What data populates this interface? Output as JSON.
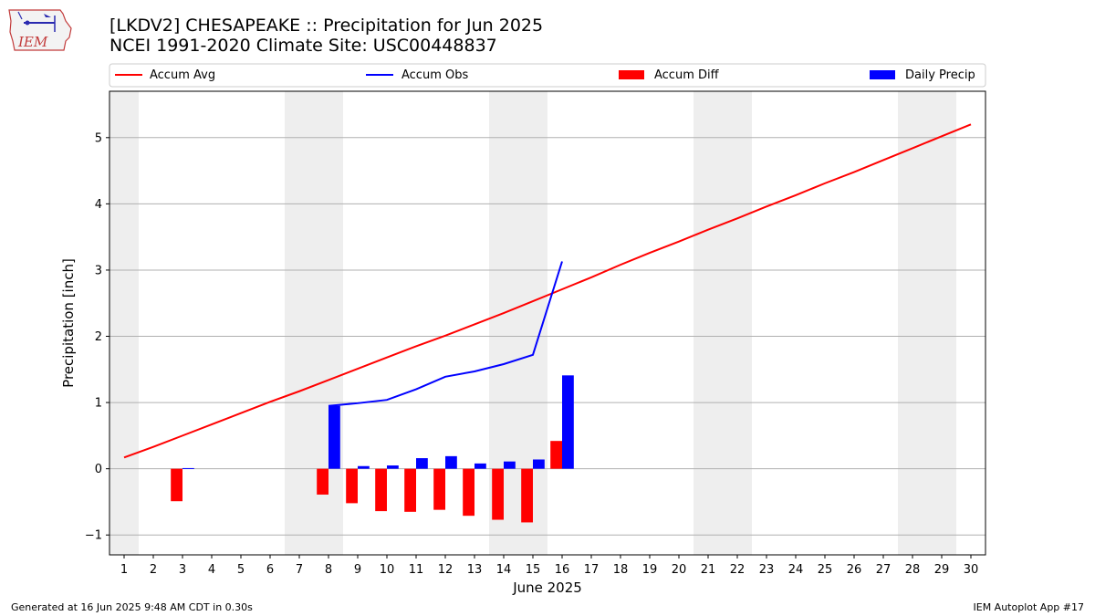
{
  "header": {
    "title_line1": "[LKDV2] CHESAPEAKE :: Precipitation for Jun 2025",
    "title_line2": "NCEI 1991-2020 Climate Site: USC00448837"
  },
  "logo": {
    "text": "IEM",
    "icon": "iowa-state-outline-weather-logo"
  },
  "footer": {
    "left": "Generated at 16 Jun 2025 9:48 AM CDT in 0.30s",
    "right": "IEM Autoplot App #17"
  },
  "chart_data": {
    "type": "bar",
    "xlabel": "June 2025",
    "ylabel": "Precipitation [inch]",
    "x": [
      1,
      2,
      3,
      4,
      5,
      6,
      7,
      8,
      9,
      10,
      11,
      12,
      13,
      14,
      15,
      16,
      17,
      18,
      19,
      20,
      21,
      22,
      23,
      24,
      25,
      26,
      27,
      28,
      29,
      30
    ],
    "xlim": [
      0.5,
      30.5
    ],
    "ylim": [
      -1.3,
      5.7
    ],
    "yticks": [
      -1,
      0,
      1,
      2,
      3,
      4,
      5
    ],
    "grid": "horizontal",
    "weekend_shading": [
      [
        0.5,
        1.5
      ],
      [
        6.5,
        8.5
      ],
      [
        13.5,
        15.5
      ],
      [
        20.5,
        22.5
      ],
      [
        27.5,
        29.5
      ]
    ],
    "legend_position": "top",
    "series": [
      {
        "name": "Accum Avg",
        "kind": "line",
        "color": "#ff0000",
        "x": [
          1,
          2,
          3,
          4,
          5,
          6,
          7,
          8,
          9,
          10,
          11,
          12,
          13,
          14,
          15,
          16,
          17,
          18,
          19,
          20,
          21,
          22,
          23,
          24,
          25,
          26,
          27,
          28,
          29,
          30
        ],
        "values": [
          0.17,
          0.33,
          0.5,
          0.67,
          0.84,
          1.01,
          1.17,
          1.34,
          1.51,
          1.68,
          1.85,
          2.01,
          2.18,
          2.35,
          2.53,
          2.71,
          2.89,
          3.08,
          3.26,
          3.43,
          3.61,
          3.78,
          3.96,
          4.13,
          4.31,
          4.48,
          4.66,
          4.84,
          5.02,
          5.2
        ]
      },
      {
        "name": "Accum Obs",
        "kind": "line",
        "color": "#0000ff",
        "x": [
          8,
          9,
          10,
          11,
          12,
          13,
          14,
          15,
          16
        ],
        "values": [
          0.95,
          0.99,
          1.04,
          1.2,
          1.39,
          1.47,
          1.58,
          1.72,
          3.13
        ]
      },
      {
        "name": "Accum Diff",
        "kind": "bar",
        "color": "#ff0000",
        "x": [
          3,
          8,
          9,
          10,
          11,
          12,
          13,
          14,
          15,
          16
        ],
        "values": [
          -0.49,
          -0.39,
          -0.52,
          -0.64,
          -0.65,
          -0.62,
          -0.71,
          -0.77,
          -0.81,
          0.42
        ]
      },
      {
        "name": "Daily Precip",
        "kind": "bar",
        "color": "#0000ff",
        "x": [
          3,
          8,
          9,
          10,
          11,
          12,
          13,
          14,
          15,
          16
        ],
        "values": [
          0.01,
          0.95,
          0.04,
          0.05,
          0.16,
          0.19,
          0.08,
          0.11,
          0.14,
          1.41
        ]
      }
    ]
  }
}
